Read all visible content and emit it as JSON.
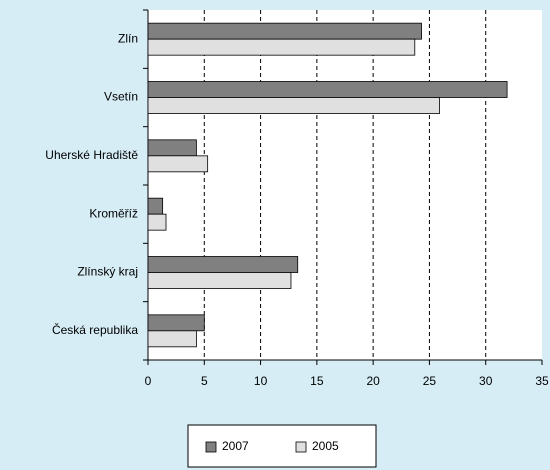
{
  "chart_data": {
    "type": "hbar",
    "categories": [
      "Zlín",
      "Vsetín",
      "Uherské Hradiště",
      "Kroměříž",
      "Zlínský kraj",
      "Česká republika"
    ],
    "series": [
      {
        "name": "2007",
        "color": "#808080",
        "values": [
          24.3,
          31.9,
          4.3,
          1.3,
          13.3,
          5.0
        ]
      },
      {
        "name": "2005",
        "color": "#e0e0e0",
        "values": [
          23.7,
          25.9,
          5.3,
          1.6,
          12.7,
          4.3
        ]
      }
    ],
    "xlim": [
      0,
      35
    ],
    "xticks": [
      0,
      5,
      10,
      15,
      20,
      25,
      30,
      35
    ],
    "grid": true,
    "legend": "bottom"
  }
}
